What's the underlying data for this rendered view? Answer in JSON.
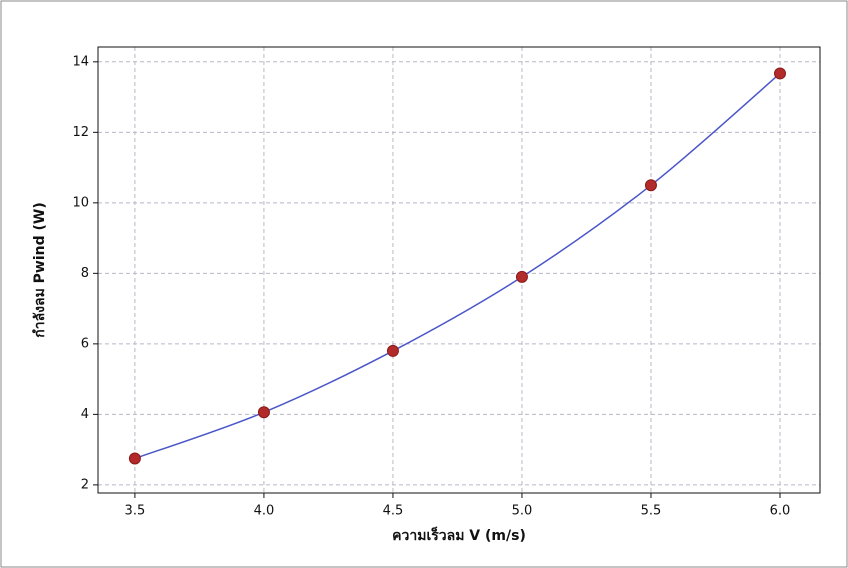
{
  "chart_data": {
    "type": "line",
    "x_label": "ความเร็วลม V (m/s)",
    "y_label": "กำลังลม Pwind (W)",
    "x": [
      3.5,
      4.0,
      4.5,
      5.0,
      5.5,
      6.0
    ],
    "values": [
      2.75,
      4.06,
      5.8,
      7.9,
      10.5,
      13.67
    ],
    "color": "#4a56c8",
    "marker_color": "#b22a2a",
    "xlim": [
      3.357,
      6.155
    ],
    "xticks": [
      3.5,
      {
        "value": 4,
        "label": "4.0"
      },
      4.5,
      {
        "value": 5,
        "label": "5.0"
      },
      5.5,
      {
        "value": 6,
        "label": "6.0"
      }
    ],
    "ylim": [
      1.77,
      14.42
    ],
    "yticks": [
      2,
      4,
      6,
      8,
      10,
      12,
      14
    ],
    "grid": true
  }
}
